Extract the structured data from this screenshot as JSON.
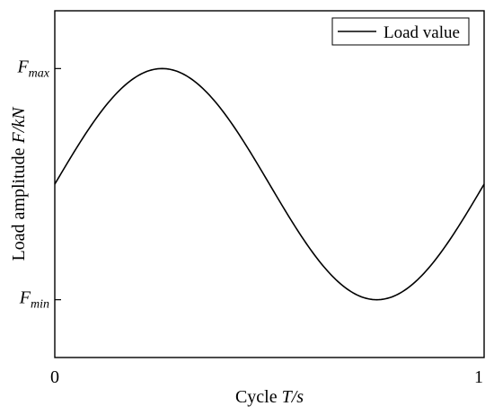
{
  "chart_data": {
    "type": "line",
    "title": "",
    "xlabel": {
      "prefix": "Cycle ",
      "italic": "T/s"
    },
    "ylabel": {
      "prefix": "Load amplitude ",
      "italic": "F/kN"
    },
    "xlim": [
      0,
      1
    ],
    "ylim": [
      -1.5,
      1.5
    ],
    "x_ticks": [
      {
        "value": 0,
        "label": "0"
      },
      {
        "value": 1,
        "label": "1"
      }
    ],
    "y_ticks": [
      {
        "value": 1,
        "base": "F",
        "sub": "max"
      },
      {
        "value": -1,
        "base": "F",
        "sub": "min"
      }
    ],
    "grid": false,
    "legend_position": "top-right",
    "series": [
      {
        "name": "Load value",
        "color": "#000000",
        "x": [
          0,
          0.05,
          0.1,
          0.15,
          0.2,
          0.25,
          0.3,
          0.35,
          0.4,
          0.45,
          0.5,
          0.55,
          0.6,
          0.65,
          0.7,
          0.75,
          0.8,
          0.85,
          0.9,
          0.95,
          1
        ],
        "y": [
          0,
          0.309,
          0.588,
          0.809,
          0.951,
          1,
          0.951,
          0.809,
          0.588,
          0.309,
          0,
          -0.309,
          -0.588,
          -0.809,
          -0.951,
          -1,
          -0.951,
          -0.809,
          -0.588,
          -0.309,
          0
        ]
      }
    ]
  }
}
